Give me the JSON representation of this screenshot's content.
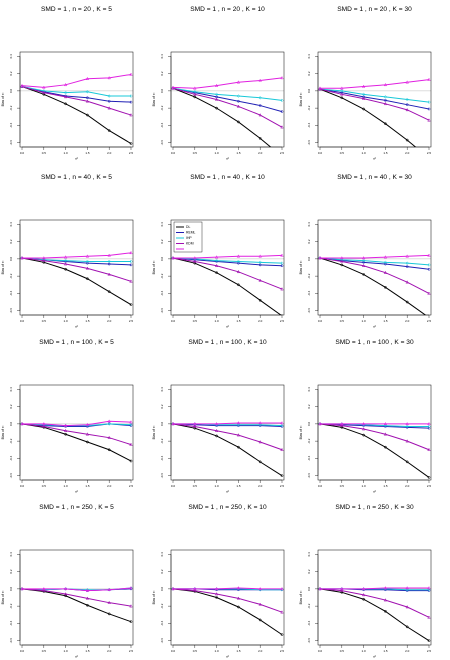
{
  "colors": {
    "DL": "#000000",
    "REML": "#1f1fb4",
    "IHP": "#18c8d8",
    "KDM": "#a010b0",
    "other": "#e020e0",
    "reference": "#bbbbbb"
  },
  "chart_data": [
    {
      "type": "line",
      "title": "SMD = 1 , n = 20 , K = 5",
      "xlabel": "τ²",
      "ylabel": "Bias of τ²",
      "x": [
        0,
        0.5,
        1,
        1.5,
        2,
        2.5
      ],
      "ylim": [
        -0.65,
        0.45
      ],
      "series": [
        {
          "name": "DL",
          "color_key": "DL",
          "values": [
            0.05,
            -0.04,
            -0.15,
            -0.28,
            -0.46,
            -0.61
          ]
        },
        {
          "name": "REML",
          "color_key": "REML",
          "values": [
            0.05,
            -0.01,
            -0.06,
            -0.08,
            -0.12,
            -0.13
          ]
        },
        {
          "name": "IHP",
          "color_key": "IHP",
          "values": [
            0.05,
            0.0,
            -0.02,
            -0.01,
            -0.06,
            -0.06
          ]
        },
        {
          "name": "KDM",
          "color_key": "KDM",
          "values": [
            0.05,
            -0.02,
            -0.07,
            -0.12,
            -0.2,
            -0.28
          ]
        },
        {
          "name": "",
          "color_key": "other",
          "values": [
            0.06,
            0.04,
            0.07,
            0.14,
            0.15,
            0.19
          ]
        }
      ]
    },
    {
      "type": "line",
      "title": "SMD = 1 , n = 20 , K = 10",
      "xlabel": "τ²",
      "ylabel": "Bias of τ²",
      "x": [
        0,
        0.5,
        1,
        1.5,
        2,
        2.5
      ],
      "ylim": [
        -0.65,
        0.45
      ],
      "series": [
        {
          "name": "DL",
          "color_key": "DL",
          "values": [
            0.03,
            -0.07,
            -0.2,
            -0.36,
            -0.55,
            -0.76
          ]
        },
        {
          "name": "REML",
          "color_key": "REML",
          "values": [
            0.03,
            -0.02,
            -0.07,
            -0.12,
            -0.17,
            -0.24
          ]
        },
        {
          "name": "IHP",
          "color_key": "IHP",
          "values": [
            0.03,
            -0.01,
            -0.04,
            -0.06,
            -0.08,
            -0.11
          ]
        },
        {
          "name": "KDM",
          "color_key": "KDM",
          "values": [
            0.03,
            -0.04,
            -0.1,
            -0.18,
            -0.28,
            -0.42
          ]
        },
        {
          "name": "",
          "color_key": "other",
          "values": [
            0.04,
            0.03,
            0.06,
            0.1,
            0.12,
            0.15
          ]
        }
      ]
    },
    {
      "type": "line",
      "title": "SMD = 1 , n = 20 , K = 30",
      "xlabel": "τ²",
      "ylabel": "Bias of τ²",
      "x": [
        0,
        0.5,
        1,
        1.5,
        2,
        2.5
      ],
      "ylim": [
        -0.65,
        0.45
      ],
      "series": [
        {
          "name": "DL",
          "color_key": "DL",
          "values": [
            0.02,
            -0.08,
            -0.21,
            -0.38,
            -0.57,
            -0.78
          ]
        },
        {
          "name": "REML",
          "color_key": "REML",
          "values": [
            0.02,
            -0.02,
            -0.07,
            -0.11,
            -0.16,
            -0.21
          ]
        },
        {
          "name": "IHP",
          "color_key": "IHP",
          "values": [
            0.02,
            0.0,
            -0.04,
            -0.07,
            -0.1,
            -0.13
          ]
        },
        {
          "name": "KDM",
          "color_key": "KDM",
          "values": [
            0.02,
            -0.04,
            -0.09,
            -0.15,
            -0.22,
            -0.34
          ]
        },
        {
          "name": "",
          "color_key": "other",
          "values": [
            0.03,
            0.03,
            0.05,
            0.07,
            0.1,
            0.13
          ]
        }
      ]
    },
    {
      "type": "line",
      "title": "SMD = 1 , n = 40 , K = 5",
      "xlabel": "τ²",
      "ylabel": "Bias of τ²",
      "x": [
        0,
        0.5,
        1,
        1.5,
        2,
        2.5
      ],
      "ylim": [
        -0.65,
        0.45
      ],
      "series": [
        {
          "name": "DL",
          "color_key": "DL",
          "values": [
            0.01,
            -0.04,
            -0.12,
            -0.23,
            -0.38,
            -0.53
          ]
        },
        {
          "name": "REML",
          "color_key": "REML",
          "values": [
            0.01,
            -0.01,
            -0.03,
            -0.05,
            -0.06,
            -0.07
          ]
        },
        {
          "name": "IHP",
          "color_key": "IHP",
          "values": [
            0.01,
            -0.01,
            -0.02,
            -0.03,
            -0.03,
            -0.03
          ]
        },
        {
          "name": "KDM",
          "color_key": "KDM",
          "values": [
            0.01,
            -0.02,
            -0.06,
            -0.11,
            -0.18,
            -0.26
          ]
        },
        {
          "name": "",
          "color_key": "other",
          "values": [
            0.01,
            0.01,
            0.02,
            0.03,
            0.04,
            0.07
          ]
        }
      ]
    },
    {
      "type": "line",
      "title": "SMD = 1 , n = 40 , K = 10",
      "xlabel": "τ²",
      "ylabel": "Bias of τ²",
      "legend": [
        "DL",
        "REML",
        "IHP",
        "KDM",
        ""
      ],
      "legend_position": "top-left",
      "x": [
        0,
        0.5,
        1,
        1.5,
        2,
        2.5
      ],
      "ylim": [
        -0.65,
        0.45
      ],
      "series": [
        {
          "name": "DL",
          "color_key": "DL",
          "values": [
            0.01,
            -0.05,
            -0.16,
            -0.3,
            -0.48,
            -0.66
          ]
        },
        {
          "name": "REML",
          "color_key": "REML",
          "values": [
            0.01,
            -0.01,
            -0.03,
            -0.05,
            -0.07,
            -0.08
          ]
        },
        {
          "name": "IHP",
          "color_key": "IHP",
          "values": [
            0.01,
            0.0,
            -0.02,
            -0.03,
            -0.04,
            -0.05
          ]
        },
        {
          "name": "KDM",
          "color_key": "KDM",
          "values": [
            0.01,
            -0.03,
            -0.08,
            -0.15,
            -0.25,
            -0.35
          ]
        },
        {
          "name": "",
          "color_key": "other",
          "values": [
            0.01,
            0.01,
            0.02,
            0.03,
            0.03,
            0.04
          ]
        }
      ]
    },
    {
      "type": "line",
      "title": "SMD = 1 , n = 40 , K = 30",
      "xlabel": "τ²",
      "ylabel": "Bias of τ²",
      "x": [
        0,
        0.5,
        1,
        1.5,
        2,
        2.5
      ],
      "ylim": [
        -0.65,
        0.45
      ],
      "series": [
        {
          "name": "DL",
          "color_key": "DL",
          "values": [
            0.01,
            -0.07,
            -0.18,
            -0.33,
            -0.5,
            -0.68
          ]
        },
        {
          "name": "REML",
          "color_key": "REML",
          "values": [
            0.01,
            -0.02,
            -0.04,
            -0.06,
            -0.09,
            -0.12
          ]
        },
        {
          "name": "IHP",
          "color_key": "IHP",
          "values": [
            0.01,
            -0.01,
            -0.02,
            -0.04,
            -0.05,
            -0.07
          ]
        },
        {
          "name": "KDM",
          "color_key": "KDM",
          "values": [
            0.01,
            -0.03,
            -0.08,
            -0.16,
            -0.27,
            -0.4
          ]
        },
        {
          "name": "",
          "color_key": "other",
          "values": [
            0.01,
            0.01,
            0.01,
            0.02,
            0.03,
            0.04
          ]
        }
      ]
    },
    {
      "type": "line",
      "title": "SMD = 1 , n = 100 , K = 5",
      "xlabel": "τ²",
      "ylabel": "Bias of τ²",
      "x": [
        0,
        0.5,
        1,
        1.5,
        2,
        2.5
      ],
      "ylim": [
        -0.65,
        0.45
      ],
      "series": [
        {
          "name": "DL",
          "color_key": "DL",
          "values": [
            0.0,
            -0.04,
            -0.12,
            -0.21,
            -0.3,
            -0.43
          ]
        },
        {
          "name": "REML",
          "color_key": "REML",
          "values": [
            0.0,
            -0.02,
            -0.03,
            -0.03,
            0.0,
            -0.02
          ]
        },
        {
          "name": "IHP",
          "color_key": "IHP",
          "values": [
            0.0,
            -0.01,
            -0.02,
            -0.02,
            0.0,
            -0.01
          ]
        },
        {
          "name": "KDM",
          "color_key": "KDM",
          "values": [
            0.0,
            -0.03,
            -0.08,
            -0.12,
            -0.16,
            -0.24
          ]
        },
        {
          "name": "",
          "color_key": "other",
          "values": [
            0.0,
            0.0,
            -0.02,
            -0.01,
            0.03,
            0.02
          ]
        }
      ]
    },
    {
      "type": "line",
      "title": "SMD = 1 , n = 100 , K = 10",
      "xlabel": "τ²",
      "ylabel": "Bias of τ²",
      "x": [
        0,
        0.5,
        1,
        1.5,
        2,
        2.5
      ],
      "ylim": [
        -0.65,
        0.45
      ],
      "series": [
        {
          "name": "DL",
          "color_key": "DL",
          "values": [
            0.0,
            -0.05,
            -0.14,
            -0.27,
            -0.44,
            -0.6
          ]
        },
        {
          "name": "REML",
          "color_key": "REML",
          "values": [
            0.0,
            -0.01,
            -0.02,
            -0.02,
            -0.02,
            -0.03
          ]
        },
        {
          "name": "IHP",
          "color_key": "IHP",
          "values": [
            0.0,
            0.0,
            -0.01,
            -0.01,
            -0.01,
            -0.02
          ]
        },
        {
          "name": "KDM",
          "color_key": "KDM",
          "values": [
            0.0,
            -0.03,
            -0.08,
            -0.13,
            -0.21,
            -0.3
          ]
        },
        {
          "name": "",
          "color_key": "other",
          "values": [
            0.0,
            0.0,
            0.0,
            0.01,
            0.01,
            0.01
          ]
        }
      ]
    },
    {
      "type": "line",
      "title": "SMD = 1 , n = 100 , K = 30",
      "xlabel": "τ²",
      "ylabel": "Bias of τ²",
      "x": [
        0,
        0.5,
        1,
        1.5,
        2,
        2.5
      ],
      "ylim": [
        -0.65,
        0.45
      ],
      "series": [
        {
          "name": "DL",
          "color_key": "DL",
          "values": [
            0.0,
            -0.04,
            -0.13,
            -0.27,
            -0.44,
            -0.62
          ]
        },
        {
          "name": "REML",
          "color_key": "REML",
          "values": [
            0.0,
            -0.01,
            -0.02,
            -0.03,
            -0.04,
            -0.05
          ]
        },
        {
          "name": "IHP",
          "color_key": "IHP",
          "values": [
            0.0,
            0.0,
            -0.01,
            -0.02,
            -0.03,
            -0.03
          ]
        },
        {
          "name": "KDM",
          "color_key": "KDM",
          "values": [
            0.0,
            -0.02,
            -0.06,
            -0.12,
            -0.2,
            -0.3
          ]
        },
        {
          "name": "",
          "color_key": "other",
          "values": [
            0.0,
            0.0,
            0.0,
            0.0,
            0.0,
            0.0
          ]
        }
      ]
    },
    {
      "type": "line",
      "title": "SMD = 1 , n = 250 , K = 5",
      "xlabel": "τ²",
      "ylabel": "Bias of τ²",
      "x": [
        0,
        0.5,
        1,
        1.5,
        2,
        2.5
      ],
      "ylim": [
        -0.65,
        0.45
      ],
      "series": [
        {
          "name": "DL",
          "color_key": "DL",
          "values": [
            0.0,
            -0.03,
            -0.08,
            -0.19,
            -0.29,
            -0.38
          ]
        },
        {
          "name": "REML",
          "color_key": "REML",
          "values": [
            0.0,
            -0.01,
            0.0,
            -0.02,
            -0.01,
            0.0
          ]
        },
        {
          "name": "IHP",
          "color_key": "IHP",
          "values": [
            0.0,
            -0.01,
            0.0,
            -0.01,
            -0.01,
            0.01
          ]
        },
        {
          "name": "KDM",
          "color_key": "KDM",
          "values": [
            0.0,
            -0.02,
            -0.06,
            -0.11,
            -0.16,
            -0.2
          ]
        },
        {
          "name": "",
          "color_key": "other",
          "values": [
            0.0,
            0.0,
            0.0,
            -0.02,
            -0.01,
            0.01
          ]
        }
      ]
    },
    {
      "type": "line",
      "title": "SMD = 1 , n = 250 , K = 10",
      "xlabel": "τ²",
      "ylabel": "Bias of τ²",
      "x": [
        0,
        0.5,
        1,
        1.5,
        2,
        2.5
      ],
      "ylim": [
        -0.65,
        0.45
      ],
      "series": [
        {
          "name": "DL",
          "color_key": "DL",
          "values": [
            0.0,
            -0.03,
            -0.1,
            -0.21,
            -0.36,
            -0.53
          ]
        },
        {
          "name": "REML",
          "color_key": "REML",
          "values": [
            0.0,
            0.0,
            -0.01,
            -0.01,
            -0.01,
            -0.01
          ]
        },
        {
          "name": "IHP",
          "color_key": "IHP",
          "values": [
            0.0,
            0.0,
            0.0,
            0.0,
            -0.01,
            -0.01
          ]
        },
        {
          "name": "KDM",
          "color_key": "KDM",
          "values": [
            0.0,
            -0.02,
            -0.06,
            -0.11,
            -0.18,
            -0.27
          ]
        },
        {
          "name": "",
          "color_key": "other",
          "values": [
            0.0,
            0.0,
            0.0,
            0.01,
            0.0,
            0.0
          ]
        }
      ]
    },
    {
      "type": "line",
      "title": "SMD = 1 , n = 250 , K = 30",
      "xlabel": "τ²",
      "ylabel": "Bias of τ²",
      "x": [
        0,
        0.5,
        1,
        1.5,
        2,
        2.5
      ],
      "ylim": [
        -0.65,
        0.45
      ],
      "series": [
        {
          "name": "DL",
          "color_key": "DL",
          "values": [
            0.0,
            -0.04,
            -0.12,
            -0.26,
            -0.44,
            -0.6
          ]
        },
        {
          "name": "REML",
          "color_key": "REML",
          "values": [
            0.0,
            0.0,
            -0.01,
            -0.01,
            -0.02,
            -0.02
          ]
        },
        {
          "name": "IHP",
          "color_key": "IHP",
          "values": [
            0.0,
            0.0,
            0.0,
            0.0,
            -0.01,
            -0.01
          ]
        },
        {
          "name": "KDM",
          "color_key": "KDM",
          "values": [
            0.0,
            -0.02,
            -0.07,
            -0.13,
            -0.21,
            -0.33
          ]
        },
        {
          "name": "",
          "color_key": "other",
          "values": [
            0.0,
            0.0,
            0.0,
            0.01,
            0.01,
            0.01
          ]
        }
      ]
    }
  ]
}
